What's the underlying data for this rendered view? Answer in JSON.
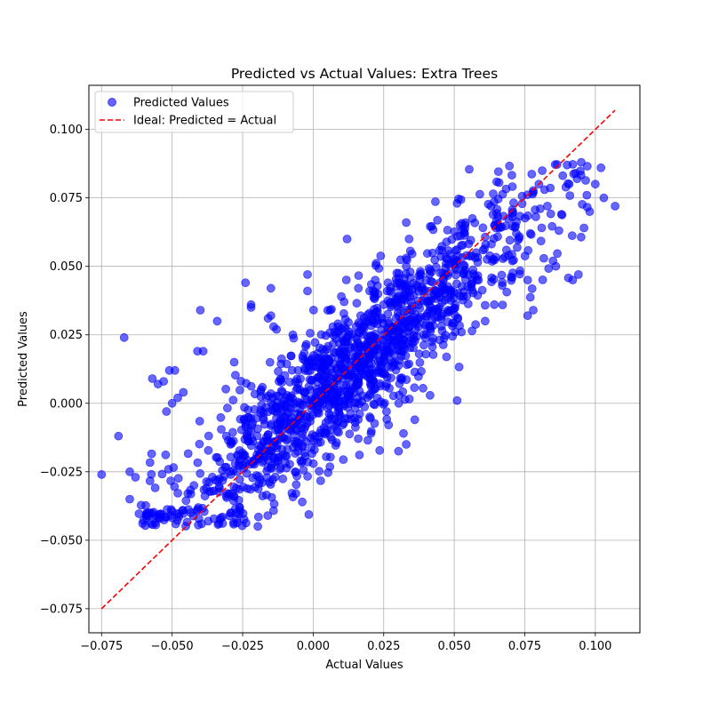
{
  "chart_data": {
    "type": "scatter",
    "title": "Predicted vs Actual Values: Extra Trees",
    "xlabel": "Actual Values",
    "ylabel": "Predicted Values",
    "xlim": [
      -0.0795,
      0.1158
    ],
    "ylim": [
      -0.0838,
      0.1161
    ],
    "xticks": [
      -0.075,
      -0.05,
      -0.025,
      0.0,
      0.025,
      0.05,
      0.075,
      0.1
    ],
    "xtick_labels": [
      "−0.075",
      "−0.050",
      "−0.025",
      "0.000",
      "0.025",
      "0.050",
      "0.075",
      "0.100"
    ],
    "yticks": [
      -0.075,
      -0.05,
      -0.025,
      0.0,
      0.025,
      0.05,
      0.075,
      0.1
    ],
    "ytick_labels": [
      "−0.075",
      "−0.050",
      "−0.025",
      "0.000",
      "0.025",
      "0.050",
      "0.075",
      "0.100"
    ],
    "grid": true,
    "legend_position": "top-left",
    "series": [
      {
        "name": "Predicted Values",
        "kind": "scatter",
        "color": "#0000ff",
        "opacity": 0.6,
        "points": [
          [
            -0.075,
            -0.026
          ],
          [
            -0.067,
            0.024
          ],
          [
            -0.069,
            -0.012
          ],
          [
            -0.065,
            -0.025
          ],
          [
            -0.063,
            -0.027
          ],
          [
            -0.065,
            -0.035
          ],
          [
            -0.058,
            -0.041
          ],
          [
            -0.056,
            -0.041
          ],
          [
            -0.057,
            0.009
          ],
          [
            -0.055,
            0.007
          ],
          [
            -0.053,
            0.008
          ],
          [
            -0.051,
            0.012
          ],
          [
            -0.049,
            0.012
          ],
          [
            -0.05,
            0.0
          ],
          [
            -0.052,
            -0.003
          ],
          [
            -0.048,
            0.002
          ],
          [
            -0.046,
            0.004
          ],
          [
            -0.04,
            0.034
          ],
          [
            -0.041,
            0.019
          ],
          [
            -0.039,
            0.019
          ],
          [
            -0.034,
            0.03
          ],
          [
            -0.028,
            0.015
          ],
          [
            -0.024,
            0.044
          ],
          [
            -0.022,
            0.036
          ],
          [
            -0.022,
            0.035
          ],
          [
            -0.015,
            0.042
          ],
          [
            -0.015,
            0.032
          ],
          [
            -0.016,
            0.031
          ],
          [
            -0.014,
            0.028
          ],
          [
            -0.013,
            0.027
          ],
          [
            -0.002,
            0.047
          ],
          [
            -0.002,
            0.041
          ],
          [
            0.006,
            0.034
          ],
          [
            0.01,
            0.039
          ],
          [
            0.012,
            0.06
          ],
          [
            0.016,
            0.042
          ],
          [
            0.02,
            0.041
          ],
          [
            0.022,
            0.045
          ],
          [
            0.025,
            0.036
          ],
          [
            0.033,
            0.066
          ],
          [
            0.034,
            0.06
          ],
          [
            0.033,
            0.053
          ],
          [
            0.033,
            0.05
          ],
          [
            0.033,
            -0.015
          ],
          [
            0.032,
            -0.011
          ],
          [
            0.036,
            -0.006
          ],
          [
            0.051,
            0.001
          ],
          [
            0.051,
            0.073
          ],
          [
            0.052,
            0.065
          ],
          [
            0.054,
            0.066
          ],
          [
            0.063,
            0.072
          ],
          [
            0.067,
            0.043
          ],
          [
            0.072,
            0.062
          ],
          [
            0.076,
            0.045
          ],
          [
            0.076,
            0.032
          ],
          [
            0.078,
            0.034
          ],
          [
            0.078,
            0.077
          ],
          [
            0.08,
            0.08
          ],
          [
            0.082,
            0.078
          ],
          [
            0.083,
            0.072
          ],
          [
            0.088,
            0.069
          ],
          [
            0.092,
            0.045
          ],
          [
            0.09,
            0.087
          ],
          [
            0.093,
            0.084
          ],
          [
            0.095,
            0.088
          ],
          [
            0.097,
            0.076
          ],
          [
            0.1,
            0.08
          ],
          [
            0.102,
            0.086
          ],
          [
            0.103,
            0.075
          ],
          [
            0.107,
            0.072
          ],
          [
            0.094,
            0.047
          ],
          [
            0.096,
            0.064
          ],
          [
            0.098,
            0.07
          ],
          [
            0.085,
            0.052
          ],
          [
            0.086,
            0.05
          ]
        ]
      },
      {
        "name": "Ideal: Predicted = Actual",
        "kind": "line",
        "color": "#ff0000",
        "dash": "dashed",
        "points": [
          [
            -0.075,
            -0.075
          ],
          [
            0.107,
            0.107
          ]
        ]
      }
    ]
  }
}
